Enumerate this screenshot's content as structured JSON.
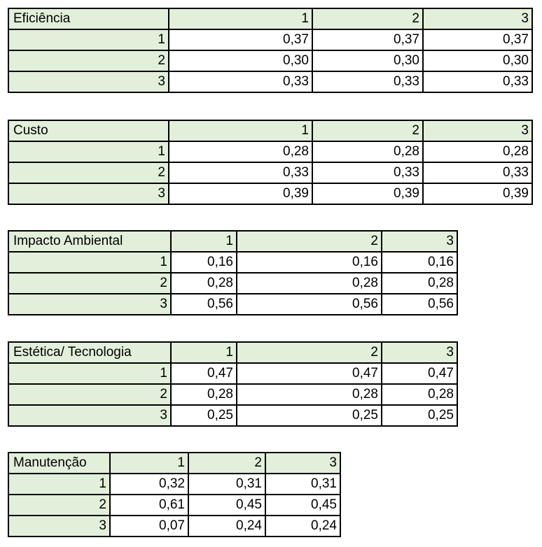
{
  "tables": [
    {
      "title": "Eficiência",
      "columns": [
        "1",
        "2",
        "3"
      ],
      "rows": [
        {
          "label": "1",
          "values": [
            "0,37",
            "0,37",
            "0,37"
          ]
        },
        {
          "label": "2",
          "values": [
            "0,30",
            "0,30",
            "0,30"
          ]
        },
        {
          "label": "3",
          "values": [
            "0,33",
            "0,33",
            "0,33"
          ]
        }
      ]
    },
    {
      "title": "Custo",
      "columns": [
        "1",
        "2",
        "3"
      ],
      "rows": [
        {
          "label": "1",
          "values": [
            "0,28",
            "0,28",
            "0,28"
          ]
        },
        {
          "label": "2",
          "values": [
            "0,33",
            "0,33",
            "0,33"
          ]
        },
        {
          "label": "3",
          "values": [
            "0,39",
            "0,39",
            "0,39"
          ]
        }
      ]
    },
    {
      "title": "Impacto Ambiental",
      "columns": [
        "1",
        "2",
        "3"
      ],
      "rows": [
        {
          "label": "1",
          "values": [
            "0,16",
            "0,16",
            "0,16"
          ]
        },
        {
          "label": "2",
          "values": [
            "0,28",
            "0,28",
            "0,28"
          ]
        },
        {
          "label": "3",
          "values": [
            "0,56",
            "0,56",
            "0,56"
          ]
        }
      ]
    },
    {
      "title": "Estética/ Tecnologia",
      "columns": [
        "1",
        "2",
        "3"
      ],
      "rows": [
        {
          "label": "1",
          "values": [
            "0,47",
            "0,47",
            "0,47"
          ]
        },
        {
          "label": "2",
          "values": [
            "0,28",
            "0,28",
            "0,28"
          ]
        },
        {
          "label": "3",
          "values": [
            "0,25",
            "0,25",
            "0,25"
          ]
        }
      ]
    },
    {
      "title": "Manutenção",
      "columns": [
        "1",
        "2",
        "3"
      ],
      "rows": [
        {
          "label": "1",
          "values": [
            "0,32",
            "0,31",
            "0,31"
          ]
        },
        {
          "label": "2",
          "values": [
            "0,61",
            "0,45",
            "0,45"
          ]
        },
        {
          "label": "3",
          "values": [
            "0,07",
            "0,24",
            "0,24"
          ]
        }
      ]
    }
  ],
  "colors": {
    "header_fill": "#e2efda",
    "border": "#000000",
    "background": "#ffffff"
  }
}
